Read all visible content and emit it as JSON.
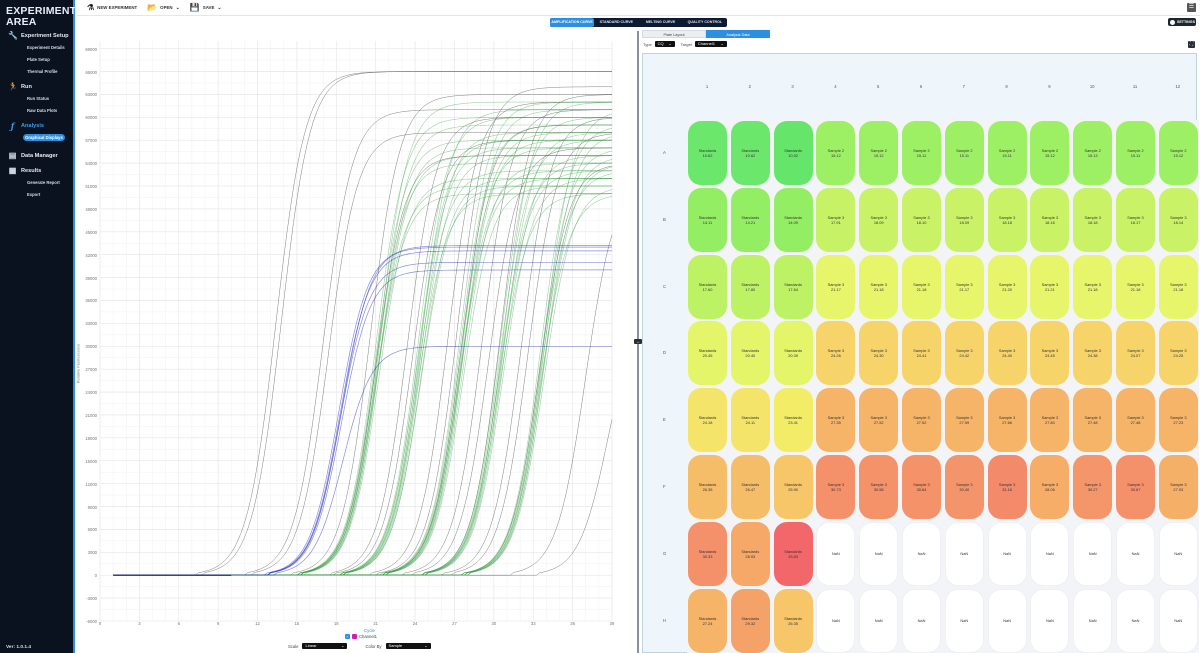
{
  "sidebar": {
    "title_line1": "EXPERIMENT",
    "title_line2": "AREA",
    "sections": [
      {
        "label": "Experiment Setup",
        "icon": "wrench-icon",
        "items": [
          "Experiment Details",
          "Plate Setup",
          "Thermal Profile"
        ]
      },
      {
        "label": "Run",
        "icon": "runner-icon",
        "items": [
          "Run Status",
          "Raw Data Plots"
        ]
      },
      {
        "label": "Analysis",
        "icon": "function-icon",
        "active": true,
        "items": [
          "Graphical Displays"
        ]
      },
      {
        "label": "Data Manager",
        "icon": "database-icon",
        "items": []
      },
      {
        "label": "Results",
        "icon": "report-icon",
        "items": [
          "Generate Report",
          "Export"
        ]
      }
    ],
    "version": "Ver: 1.0.1.4"
  },
  "toolbar": {
    "new_experiment": "NEW EXPERIMENT",
    "open": "OPEN",
    "save": "SAVE"
  },
  "main_tabs": [
    "AMPLIFICATION CURVE",
    "STANDARD CURVE",
    "MELTING CURVE",
    "QUALITY CONTROL"
  ],
  "main_tab_active": 0,
  "settings_label": "SETTINGS",
  "chart_panel": {
    "xlabel": "Cycle",
    "ylabel": "Relative Fluorescence",
    "legend": "Channel1",
    "scale_label": "Scale",
    "scale_value": "Linear",
    "color_by_label": "Color By",
    "color_by_value": "Sample"
  },
  "right_panel": {
    "sub_tabs": [
      "Plate Layout",
      "Analysis Data"
    ],
    "active_sub_tab": 1,
    "type_label": "Type",
    "type_value": "CQ",
    "target_label": "Target",
    "target_value": "Channel1"
  },
  "plate": {
    "columns": [
      "1",
      "2",
      "3",
      "4",
      "5",
      "6",
      "7",
      "8",
      "9",
      "10",
      "11",
      "12"
    ],
    "rows": [
      "A",
      "B",
      "C",
      "D",
      "E",
      "F",
      "G",
      "H"
    ],
    "wells": [
      [
        [
          "Standards",
          "10.62",
          "#6be86b"
        ],
        [
          "Standards",
          "10.62",
          "#6be86b"
        ],
        [
          "Standards",
          "10.52",
          "#65e66a"
        ],
        [
          "Sample 2",
          "15.12",
          "#9df064"
        ],
        [
          "Sample 2",
          "15.12",
          "#9df064"
        ],
        [
          "Sample 2",
          "15.11",
          "#9df064"
        ],
        [
          "Sample 2",
          "15.11",
          "#9df064"
        ],
        [
          "Sample 2",
          "15.11",
          "#9df064"
        ],
        [
          "Sample 2",
          "15.12",
          "#9df064"
        ],
        [
          "Sample 2",
          "15.13",
          "#9df064"
        ],
        [
          "Sample 2",
          "15.11",
          "#9df064"
        ],
        [
          "Sample 2",
          "15.12",
          "#9df064"
        ]
      ],
      [
        [
          "Standards",
          "14.11",
          "#94ee64"
        ],
        [
          "Standards",
          "14.21",
          "#94ee64"
        ],
        [
          "Standards",
          "14.09",
          "#94ee64"
        ],
        [
          "Sample 3",
          "17.91",
          "#c7f266"
        ],
        [
          "Sample 3",
          "18.09",
          "#c9f266"
        ],
        [
          "Sample 3",
          "18.10",
          "#c9f266"
        ],
        [
          "Sample 3",
          "18.09",
          "#c9f266"
        ],
        [
          "Sample 3",
          "18.18",
          "#c9f266"
        ],
        [
          "Sample 3",
          "18.16",
          "#c9f266"
        ],
        [
          "Sample 3",
          "18.18",
          "#c9f266"
        ],
        [
          "Sample 3",
          "18.17",
          "#c9f266"
        ],
        [
          "Sample 3",
          "18.14",
          "#c9f266"
        ]
      ],
      [
        [
          "Standards",
          "17.60",
          "#bdf264"
        ],
        [
          "Standards",
          "17.80",
          "#bdf264"
        ],
        [
          "Standards",
          "17.64",
          "#bdf264"
        ],
        [
          "Sample 3",
          "21.17",
          "#e6f56a"
        ],
        [
          "Sample 3",
          "21.18",
          "#e6f56a"
        ],
        [
          "Sample 3",
          "21.18",
          "#e6f56a"
        ],
        [
          "Sample 3",
          "21.17",
          "#e6f56a"
        ],
        [
          "Sample 3",
          "21.20",
          "#e6f56a"
        ],
        [
          "Sample 3",
          "21.21",
          "#e6f56a"
        ],
        [
          "Sample 3",
          "21.18",
          "#e6f56a"
        ],
        [
          "Sample 3",
          "21.18",
          "#e6f56a"
        ],
        [
          "Sample 3",
          "21.18",
          "#e6f56a"
        ]
      ],
      [
        [
          "Standards",
          "20.45",
          "#e4f56a"
        ],
        [
          "Standards",
          "20.40",
          "#e4f56a"
        ],
        [
          "Standards",
          "20.39",
          "#e4f56a"
        ],
        [
          "Sample 3",
          "24.26",
          "#f6d46a"
        ],
        [
          "Sample 3",
          "24.30",
          "#f6d46a"
        ],
        [
          "Sample 3",
          "24.41",
          "#f6d46a"
        ],
        [
          "Sample 3",
          "24.42",
          "#f6d46a"
        ],
        [
          "Sample 3",
          "24.40",
          "#f6d46a"
        ],
        [
          "Sample 3",
          "24.45",
          "#f6d46a"
        ],
        [
          "Sample 3",
          "24.38",
          "#f6d46a"
        ],
        [
          "Sample 3",
          "24.07",
          "#f6d46a"
        ],
        [
          "Sample 3",
          "24.25",
          "#f6d46a"
        ]
      ],
      [
        [
          "Standards",
          "24.18",
          "#f5e46a"
        ],
        [
          "Standards",
          "24.11",
          "#f5e46a"
        ],
        [
          "Standards",
          "23.41",
          "#f2ec66"
        ],
        [
          "Sample 3",
          "27.35",
          "#f5b468"
        ],
        [
          "Sample 3",
          "27.52",
          "#f5b468"
        ],
        [
          "Sample 3",
          "27.52",
          "#f5b468"
        ],
        [
          "Sample 3",
          "27.59",
          "#f5b468"
        ],
        [
          "Sample 3",
          "27.66",
          "#f5b468"
        ],
        [
          "Sample 3",
          "27.80",
          "#f5b468"
        ],
        [
          "Sample 3",
          "27.48",
          "#f5b468"
        ],
        [
          "Sample 3",
          "27.48",
          "#f5b468"
        ],
        [
          "Sample 3",
          "27.23",
          "#f5b468"
        ]
      ],
      [
        [
          "Standards",
          "26.35",
          "#f5bd68"
        ],
        [
          "Standards",
          "26.47",
          "#f5bd68"
        ],
        [
          "Standards",
          "25.90",
          "#f6c668"
        ],
        [
          "Sample 3",
          "30.73",
          "#f4916a"
        ],
        [
          "Sample 3",
          "30.58",
          "#f4926a"
        ],
        [
          "Sample 3",
          "30.64",
          "#f4926a"
        ],
        [
          "Sample 3",
          "30.40",
          "#f4946a"
        ],
        [
          "Sample 3",
          "31.16",
          "#f38a6a"
        ],
        [
          "Sample 3",
          "28.06",
          "#f5ad68"
        ],
        [
          "Sample 3",
          "30.27",
          "#f4966a"
        ],
        [
          "Sample 3",
          "30.67",
          "#f4916a"
        ],
        [
          "Sample 3",
          "27.93",
          "#f5b068"
        ]
      ],
      [
        [
          "Standards",
          "30.33",
          "#f4916a"
        ],
        [
          "Standards",
          "28.93",
          "#f5a868"
        ],
        [
          "Standards",
          "33.83",
          "#f2686a"
        ],
        [
          "NaN",
          "",
          "nan"
        ],
        [
          "NaN",
          "",
          "nan"
        ],
        [
          "NaN",
          "",
          "nan"
        ],
        [
          "NaN",
          "",
          "nan"
        ],
        [
          "NaN",
          "",
          "nan"
        ],
        [
          "NaN",
          "",
          "nan"
        ],
        [
          "NaN",
          "",
          "nan"
        ],
        [
          "NaN",
          "",
          "nan"
        ],
        [
          "NaN",
          "",
          "nan"
        ]
      ],
      [
        [
          "Standards",
          "27.24",
          "#f5b468"
        ],
        [
          "Standards",
          "29.32",
          "#f4a268"
        ],
        [
          "Standards",
          "26.35",
          "#f6c668"
        ],
        [
          "NaN",
          "",
          "nan"
        ],
        [
          "NaN",
          "",
          "nan"
        ],
        [
          "NaN",
          "",
          "nan"
        ],
        [
          "NaN",
          "",
          "nan"
        ],
        [
          "NaN",
          "",
          "nan"
        ],
        [
          "NaN",
          "",
          "nan"
        ],
        [
          "NaN",
          "",
          "nan"
        ],
        [
          "NaN",
          "",
          "nan"
        ],
        [
          "NaN",
          "",
          "nan"
        ]
      ]
    ]
  },
  "chart_data": {
    "type": "line",
    "title": "Amplification Curve",
    "xlabel": "Cycle",
    "ylabel": "Relative Fluorescence",
    "xlim": [
      0,
      39
    ],
    "ylim": [
      -6000,
      70000
    ],
    "x_ticks": [
      0,
      3,
      6,
      9,
      12,
      15,
      18,
      21,
      24,
      27,
      30,
      33,
      36,
      39
    ],
    "y_ticks": [
      69000,
      66000,
      63000,
      60000,
      57000,
      54000,
      51000,
      48000,
      45000,
      42000,
      39000,
      36000,
      33000,
      30000,
      27000,
      24000,
      21000,
      18000,
      15000,
      12000,
      9000,
      6000,
      3000,
      0,
      -3000,
      -6000
    ],
    "grid": true,
    "legend": [
      "Channel1"
    ],
    "series": [
      {
        "name": "Standards (gray)",
        "color": "#555555",
        "ct": [
          10.5,
          14.1,
          17.6,
          20.4,
          24.1,
          26.4,
          27.2,
          29.3,
          30.3,
          33.8
        ],
        "plateau": [
          66000,
          65000,
          61000,
          58000,
          55000,
          62000,
          64000,
          63000,
          60000,
          36000
        ]
      },
      {
        "name": "Sample 2 (blue)",
        "color": "#2a2fc0",
        "ct": [
          15.1
        ],
        "plateau": [
          43000,
          42000,
          41000,
          40000,
          30000
        ]
      },
      {
        "name": "Sample 3 (green)",
        "color": "#2c9a3a",
        "ct": [
          18.1,
          21.2,
          24.3,
          27.5,
          30.5
        ],
        "plateau": [
          63000,
          60000,
          58000,
          56000,
          54000,
          48000
        ]
      }
    ]
  }
}
